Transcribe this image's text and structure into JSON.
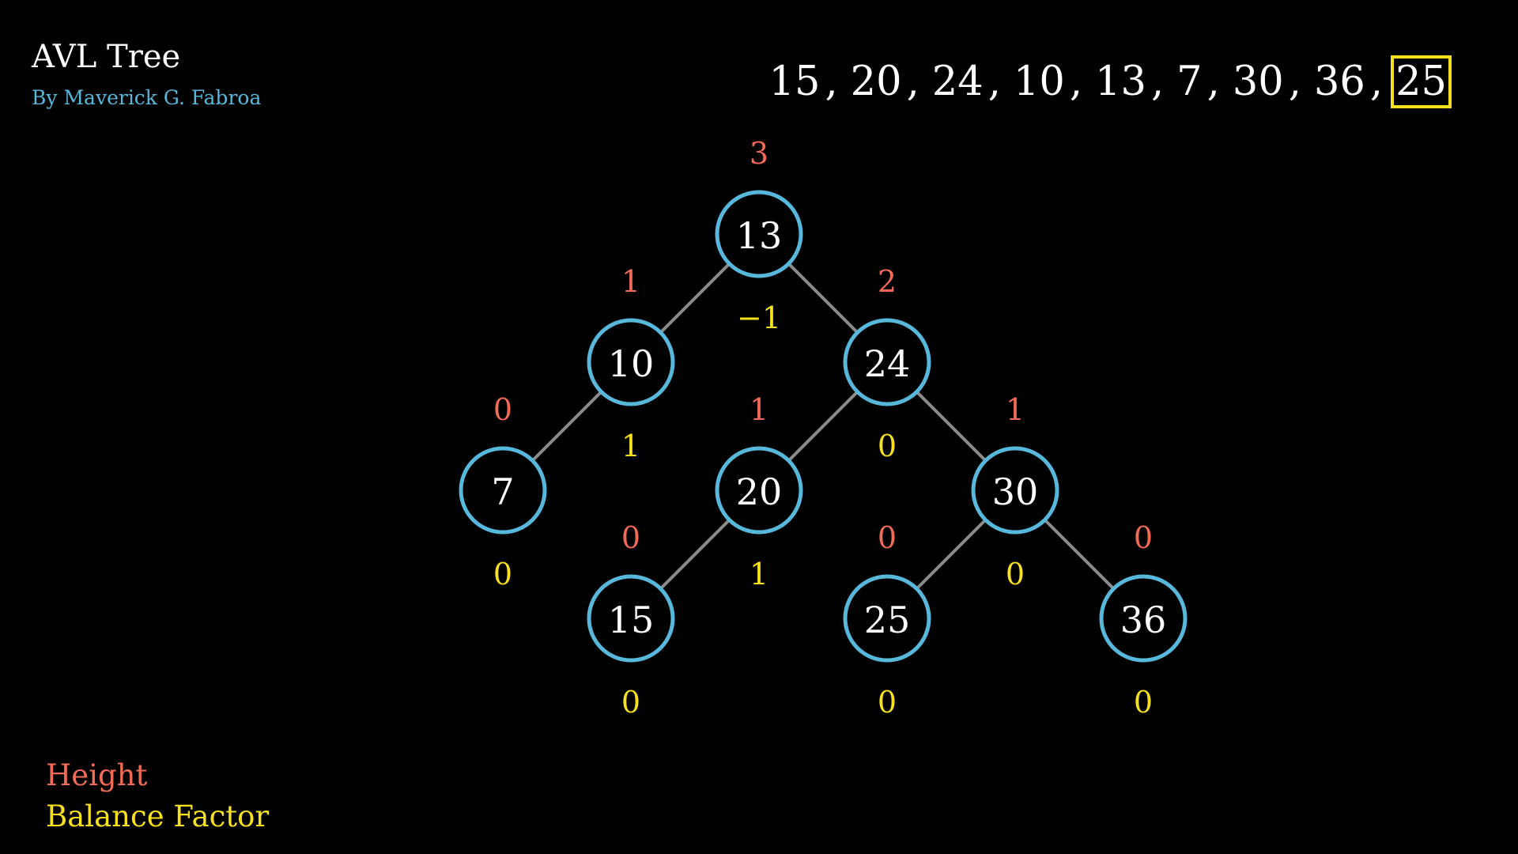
{
  "header": {
    "title": "AVL Tree",
    "author": "By Maverick G. Fabroa"
  },
  "sequence": {
    "values": [
      "15",
      "20",
      "24",
      "10",
      "13",
      "7",
      "30",
      "36",
      "25"
    ],
    "current_index": 8
  },
  "legend": {
    "height_label": "Height",
    "balance_label": "Balance Factor"
  },
  "colors": {
    "node_outline": "#58b8dc",
    "edge": "#8a8a8a",
    "height": "#f26b57",
    "balance": "#f7e11f",
    "highlight": "#f7e11f"
  },
  "tree": {
    "nodes": [
      {
        "id": "n13",
        "value": "13",
        "height": "3",
        "balance": "−1",
        "level": 0,
        "slot": 0
      },
      {
        "id": "n10",
        "value": "10",
        "height": "1",
        "balance": "1",
        "level": 1,
        "slot": 0
      },
      {
        "id": "n24",
        "value": "24",
        "height": "2",
        "balance": "0",
        "level": 1,
        "slot": 1
      },
      {
        "id": "n7",
        "value": "7",
        "height": "0",
        "balance": "0",
        "level": 2,
        "slot": 0
      },
      {
        "id": "n20",
        "value": "20",
        "height": "1",
        "balance": "1",
        "level": 2,
        "slot": 2
      },
      {
        "id": "n30",
        "value": "30",
        "height": "1",
        "balance": "0",
        "level": 2,
        "slot": 3
      },
      {
        "id": "n15",
        "value": "15",
        "height": "0",
        "balance": "0",
        "level": 3,
        "slot": 2
      },
      {
        "id": "n25",
        "value": "25",
        "height": "0",
        "balance": "0",
        "level": 3,
        "slot": 5
      },
      {
        "id": "n36",
        "value": "36",
        "height": "0",
        "balance": "0",
        "level": 3,
        "slot": 7
      }
    ],
    "edges": [
      {
        "from": "n13",
        "to": "n10"
      },
      {
        "from": "n13",
        "to": "n24"
      },
      {
        "from": "n10",
        "to": "n7"
      },
      {
        "from": "n24",
        "to": "n20"
      },
      {
        "from": "n24",
        "to": "n30"
      },
      {
        "from": "n20",
        "to": "n15"
      },
      {
        "from": "n30",
        "to": "n25"
      },
      {
        "from": "n30",
        "to": "n36"
      }
    ]
  }
}
